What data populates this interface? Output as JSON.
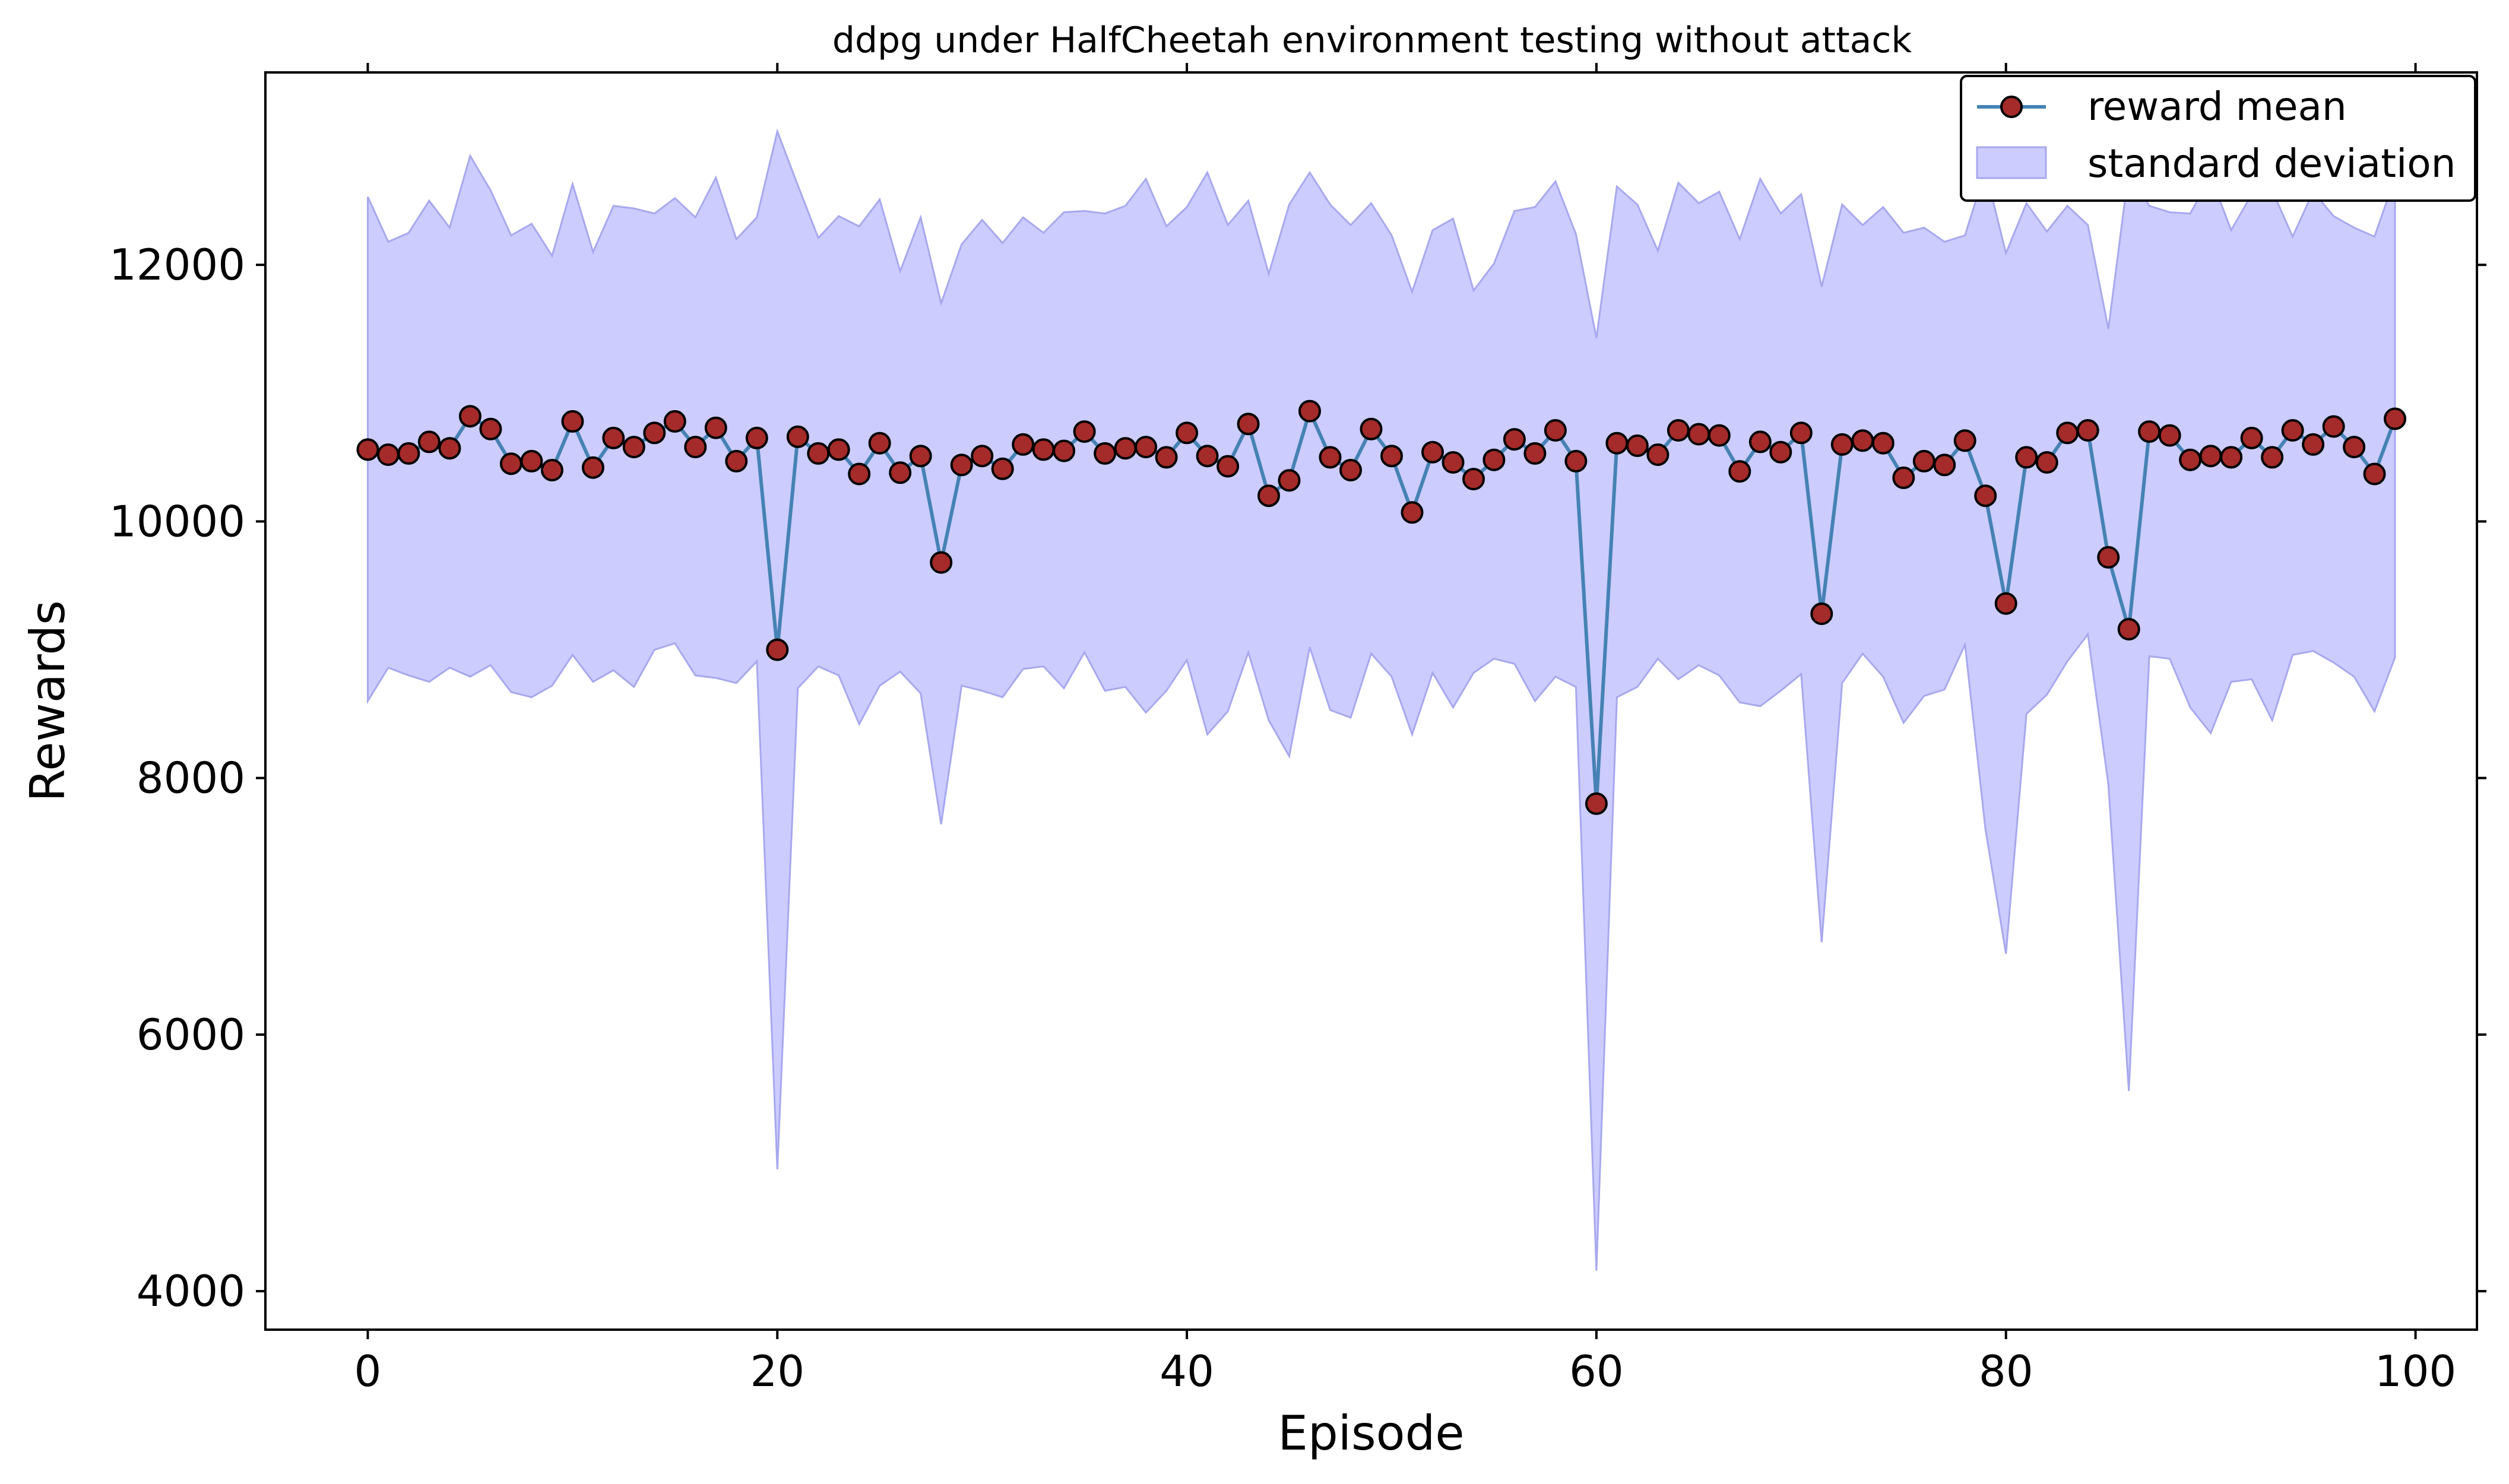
{
  "chart_data": {
    "type": "line",
    "title": "ddpg under HalfCheetah environment testing without attack",
    "xlabel": "Episode",
    "ylabel": "Rewards",
    "xlim": [
      -5,
      103
    ],
    "ylim": [
      3700,
      13500
    ],
    "xticks": [
      0,
      20,
      40,
      60,
      80,
      100
    ],
    "yticks": [
      4000,
      6000,
      8000,
      10000,
      12000
    ],
    "legend_position": "top-right",
    "grid": false,
    "colors": {
      "line": "#4682b4",
      "marker_fill": "#a52a2a",
      "marker_edge": "#000000",
      "band_fill": "#ccccff",
      "band_edge": "#a8a8ee"
    },
    "series": [
      {
        "name": "reward mean",
        "values": [
          10560,
          10520,
          10530,
          10620,
          10570,
          10820,
          10720,
          10450,
          10470,
          10400,
          10780,
          10420,
          10650,
          10580,
          10690,
          10780,
          10580,
          10730,
          10470,
          10650,
          9000,
          10660,
          10530,
          10560,
          10370,
          10610,
          10380,
          10510,
          9680,
          10440,
          10510,
          10410,
          10600,
          10560,
          10550,
          10700,
          10530,
          10570,
          10580,
          10500,
          10690,
          10510,
          10430,
          10760,
          10200,
          10320,
          10860,
          10500,
          10400,
          10720,
          10510,
          10070,
          10540,
          10460,
          10330,
          10480,
          10640,
          10530,
          10710,
          10470,
          7800,
          10610,
          10590,
          10520,
          10710,
          10680,
          10670,
          10390,
          10620,
          10540,
          10690,
          9280,
          10600,
          10630,
          10610,
          10340,
          10470,
          10440,
          10630,
          10200,
          9360,
          10500,
          10460,
          10690,
          10710,
          9720,
          9160,
          10700,
          10670,
          10480,
          10510,
          10500,
          10650,
          10500,
          10710,
          10600,
          10740,
          10580,
          10370,
          10800
        ]
      },
      {
        "name": "standard deviation",
        "upper": [
          12530,
          12180,
          12250,
          12500,
          12290,
          12850,
          12580,
          12230,
          12320,
          12070,
          12630,
          12100,
          12460,
          12440,
          12400,
          12520,
          12370,
          12680,
          12200,
          12370,
          13040,
          12620,
          12210,
          12380,
          12300,
          12510,
          11950,
          12370,
          11700,
          12160,
          12350,
          12170,
          12370,
          12250,
          12410,
          12420,
          12400,
          12460,
          12670,
          12300,
          12450,
          12720,
          12310,
          12500,
          11930,
          12470,
          12720,
          12470,
          12310,
          12480,
          12230,
          11790,
          12270,
          12360,
          11800,
          12010,
          12420,
          12450,
          12650,
          12240,
          11430,
          12610,
          12470,
          12110,
          12640,
          12480,
          12570,
          12200,
          12670,
          12400,
          12550,
          11830,
          12470,
          12310,
          12450,
          12250,
          12290,
          12180,
          12230,
          12740,
          12090,
          12480,
          12260,
          12460,
          12310,
          11500,
          12740,
          12460,
          12410,
          12400,
          12690,
          12270,
          12550,
          12580,
          12220,
          12570,
          12380,
          12290,
          12220,
          12680
        ],
        "lower": [
          8600,
          8860,
          8800,
          8750,
          8860,
          8790,
          8880,
          8670,
          8630,
          8720,
          8960,
          8750,
          8840,
          8710,
          9000,
          9050,
          8800,
          8780,
          8740,
          8910,
          4950,
          8700,
          8870,
          8800,
          8420,
          8720,
          8830,
          8660,
          7640,
          8720,
          8680,
          8630,
          8850,
          8870,
          8700,
          8980,
          8680,
          8710,
          8510,
          8680,
          8920,
          8340,
          8520,
          8980,
          8450,
          8170,
          9020,
          8530,
          8470,
          8970,
          8790,
          8340,
          8820,
          8550,
          8820,
          8930,
          8890,
          8600,
          8790,
          8710,
          4160,
          8630,
          8710,
          8930,
          8770,
          8880,
          8800,
          8590,
          8560,
          8680,
          8810,
          6720,
          8740,
          8970,
          8790,
          8430,
          8640,
          8690,
          9040,
          7600,
          6630,
          8500,
          8650,
          8910,
          9120,
          7950,
          5560,
          8950,
          8930,
          8550,
          8350,
          8750,
          8770,
          8450,
          8960,
          8990,
          8900,
          8790,
          8520,
          8940
        ]
      }
    ]
  }
}
